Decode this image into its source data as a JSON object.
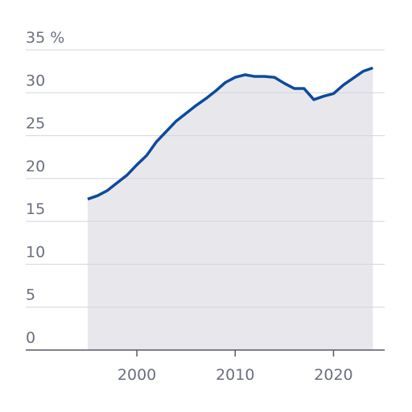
{
  "chart_data": {
    "type": "area-line",
    "x": [
      1995,
      1996,
      1997,
      1998,
      1999,
      2000,
      2001,
      2002,
      2003,
      2004,
      2005,
      2006,
      2007,
      2008,
      2009,
      2010,
      2011,
      2012,
      2013,
      2014,
      2015,
      2016,
      2017,
      2018,
      2019,
      2020,
      2021,
      2022,
      2023,
      2024
    ],
    "values": [
      17.6,
      18.0,
      18.6,
      19.5,
      20.4,
      21.6,
      22.7,
      24.3,
      25.5,
      26.7,
      27.6,
      28.5,
      29.3,
      30.2,
      31.2,
      31.8,
      32.1,
      31.9,
      31.9,
      31.8,
      31.1,
      30.5,
      30.5,
      29.2,
      29.6,
      29.9,
      30.9,
      31.7,
      32.5,
      32.9
    ],
    "color": "#0d4a9e",
    "fill_color": "#e8e8ec",
    "xlim": [
      1988.7,
      2025.2
    ],
    "xticks": [
      2000,
      2010,
      2020
    ],
    "ylim": [
      0,
      35
    ],
    "yticks": [
      0,
      5,
      10,
      15,
      20,
      25,
      30,
      {
        "value": 35,
        "label": "35 %"
      }
    ],
    "grid": true
  }
}
